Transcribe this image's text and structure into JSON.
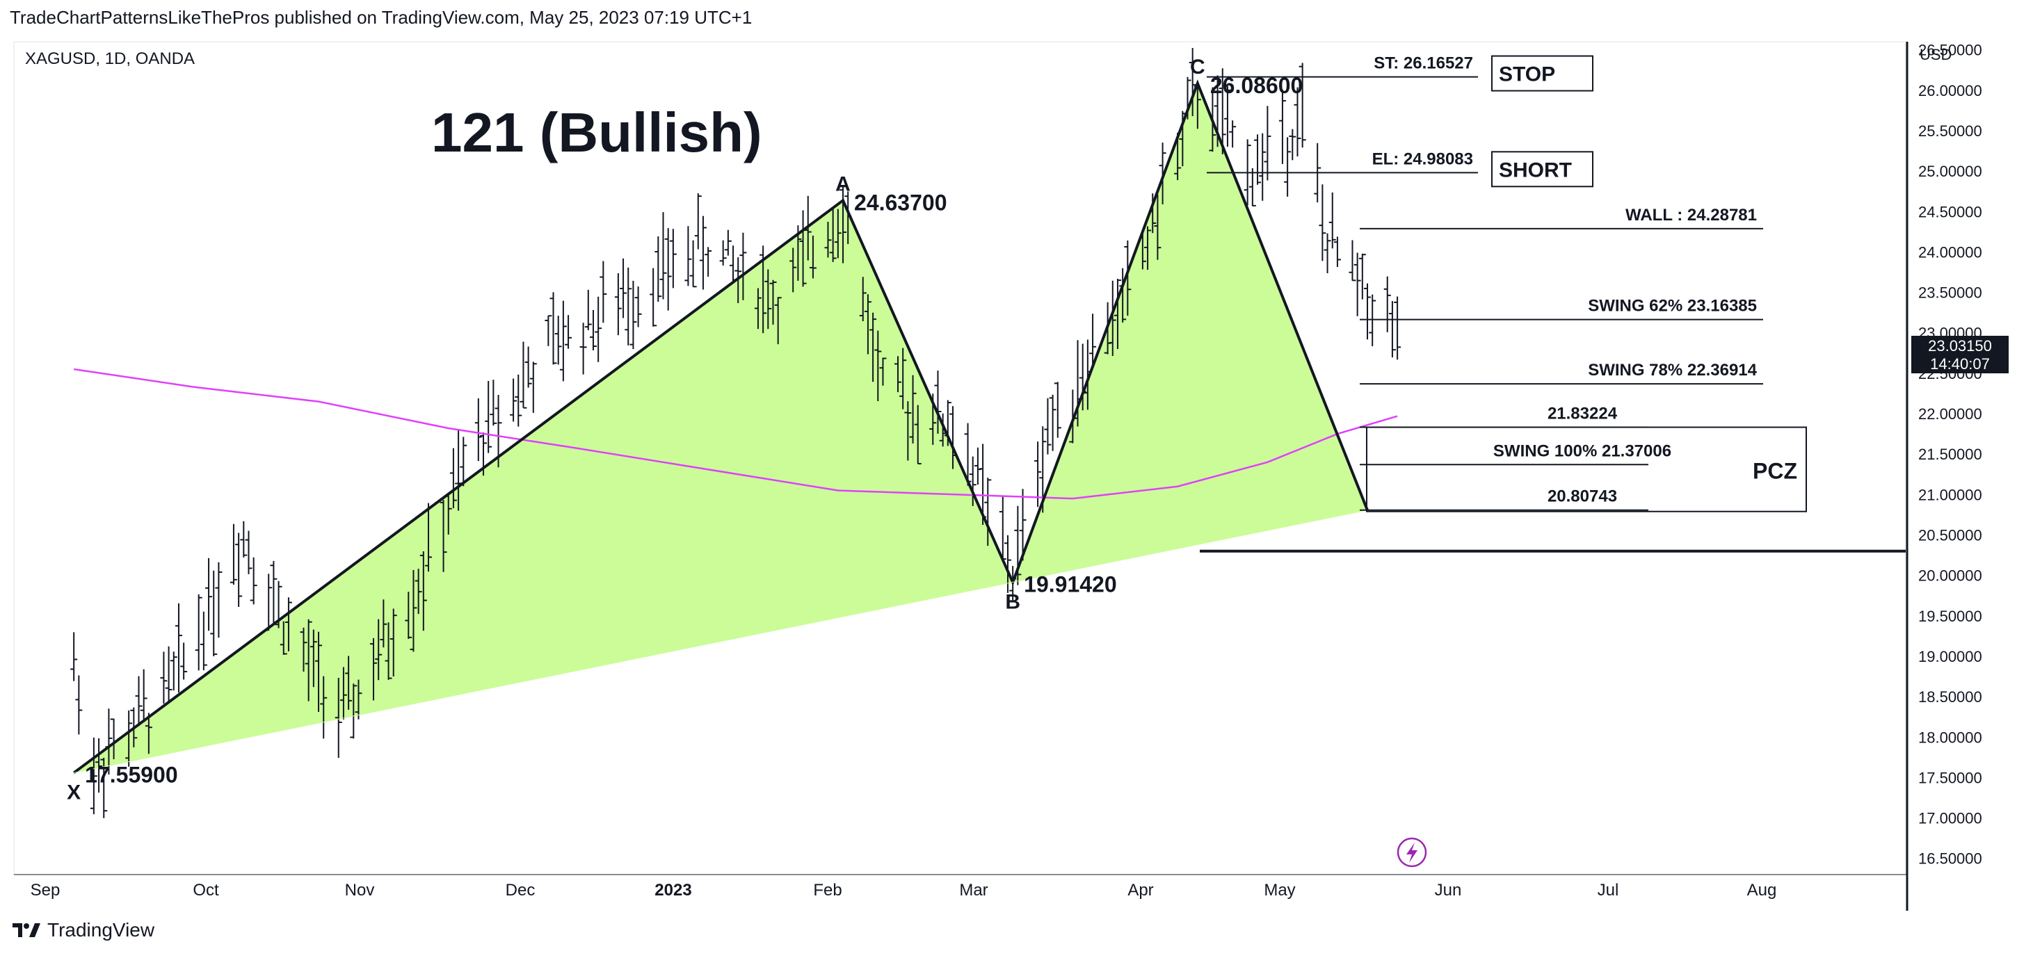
{
  "header": {
    "published": "TradeChartPatternsLikeThePros published on TradingView.com, May 25, 2023 07:19 UTC+1"
  },
  "symbol_line": "XAGUSD, 1D, OANDA",
  "brand": "TradingView",
  "chart_data": {
    "type": "ohlc",
    "title": "121 (Bullish)",
    "currency": "USD",
    "ylim": [
      16.3,
      26.6
    ],
    "y_ticks": [
      "26.50000",
      "26.00000",
      "25.50000",
      "25.00000",
      "24.50000",
      "24.00000",
      "23.50000",
      "23.00000",
      "22.50000",
      "22.00000",
      "21.50000",
      "21.00000",
      "20.50000",
      "20.00000",
      "19.50000",
      "19.00000",
      "18.50000",
      "18.00000",
      "17.50000",
      "17.00000",
      "16.50000"
    ],
    "x_ticks": [
      "Sep",
      "Oct",
      "Nov",
      "Dec",
      "2023",
      "Feb",
      "Mar",
      "Apr",
      "May",
      "Jun",
      "Jul",
      "Aug"
    ],
    "x_ticks_bold": [
      "2023"
    ],
    "pattern": {
      "points": [
        {
          "label": "X",
          "date": "2022-09-01",
          "price": 17.559,
          "value_label": "17.55900"
        },
        {
          "label": "A",
          "date": "2023-02-02",
          "price": 24.637,
          "value_label": "24.63700"
        },
        {
          "label": "B",
          "date": "2023-03-08",
          "price": 19.9142,
          "value_label": "19.91420"
        },
        {
          "label": "C",
          "date": "2023-04-14",
          "price": 26.086,
          "value_label": "26.08600"
        }
      ],
      "projection_end": {
        "date": "2023-05-18",
        "price": 20.80743
      }
    },
    "levels": [
      {
        "label": "ST: 26.16527",
        "price": 26.16527,
        "box": "STOP"
      },
      {
        "label": "EL: 24.98083",
        "price": 24.98083,
        "box": "SHORT"
      },
      {
        "label": "WALL : 24.28781",
        "price": 24.28781
      },
      {
        "label": "SWING 62% 23.16385",
        "price": 23.16385
      },
      {
        "label": "SWING 78% 22.36914",
        "price": 22.36914
      },
      {
        "label": "21.83224",
        "price": 21.83224
      },
      {
        "label": "SWING 100% 21.37006",
        "price": 21.37006
      },
      {
        "label": "20.80743",
        "price": 20.80743
      }
    ],
    "pcz_label": "PCZ",
    "support_line_price": 20.3,
    "current_price": "23.03150",
    "countdown": "14:40:07",
    "moving_average": {
      "color": "#e040fb",
      "points": [
        [
          "2022-09-01",
          22.55
        ],
        [
          "2022-09-25",
          22.33
        ],
        [
          "2022-10-20",
          22.15
        ],
        [
          "2022-11-15",
          21.82
        ],
        [
          "2022-12-10",
          21.58
        ],
        [
          "2023-01-05",
          21.32
        ],
        [
          "2023-02-01",
          21.05
        ],
        [
          "2023-02-25",
          21.0
        ],
        [
          "2023-03-20",
          20.95
        ],
        [
          "2023-04-10",
          21.1
        ],
        [
          "2023-04-28",
          21.4
        ],
        [
          "2023-05-12",
          21.75
        ],
        [
          "2023-05-24",
          21.97
        ]
      ]
    },
    "colors": {
      "pattern_fill": "#ccfc98",
      "bars": "#131722",
      "ma": "#e040fb",
      "axis": "#131722"
    },
    "ohlc_anchors": [
      [
        "2022-09-01",
        18.9
      ],
      [
        "2022-09-05",
        17.6
      ],
      [
        "2022-09-20",
        18.6
      ],
      [
        "2022-10-05",
        20.5
      ],
      [
        "2022-10-15",
        19.2
      ],
      [
        "2022-10-25",
        18.2
      ],
      [
        "2022-11-10",
        20.0
      ],
      [
        "2022-11-20",
        21.6
      ],
      [
        "2022-12-05",
        22.8
      ],
      [
        "2022-12-20",
        23.4
      ],
      [
        "2023-01-05",
        24.1
      ],
      [
        "2023-01-20",
        23.4
      ],
      [
        "2023-02-02",
        24.6
      ],
      [
        "2023-02-10",
        22.3
      ],
      [
        "2023-02-25",
        21.8
      ],
      [
        "2023-03-08",
        20.0
      ],
      [
        "2023-03-15",
        21.8
      ],
      [
        "2023-04-01",
        23.6
      ],
      [
        "2023-04-14",
        26.0
      ],
      [
        "2023-04-25",
        25.0
      ],
      [
        "2023-05-05",
        25.7
      ],
      [
        "2023-05-10",
        24.1
      ],
      [
        "2023-05-24",
        23.0
      ]
    ]
  }
}
